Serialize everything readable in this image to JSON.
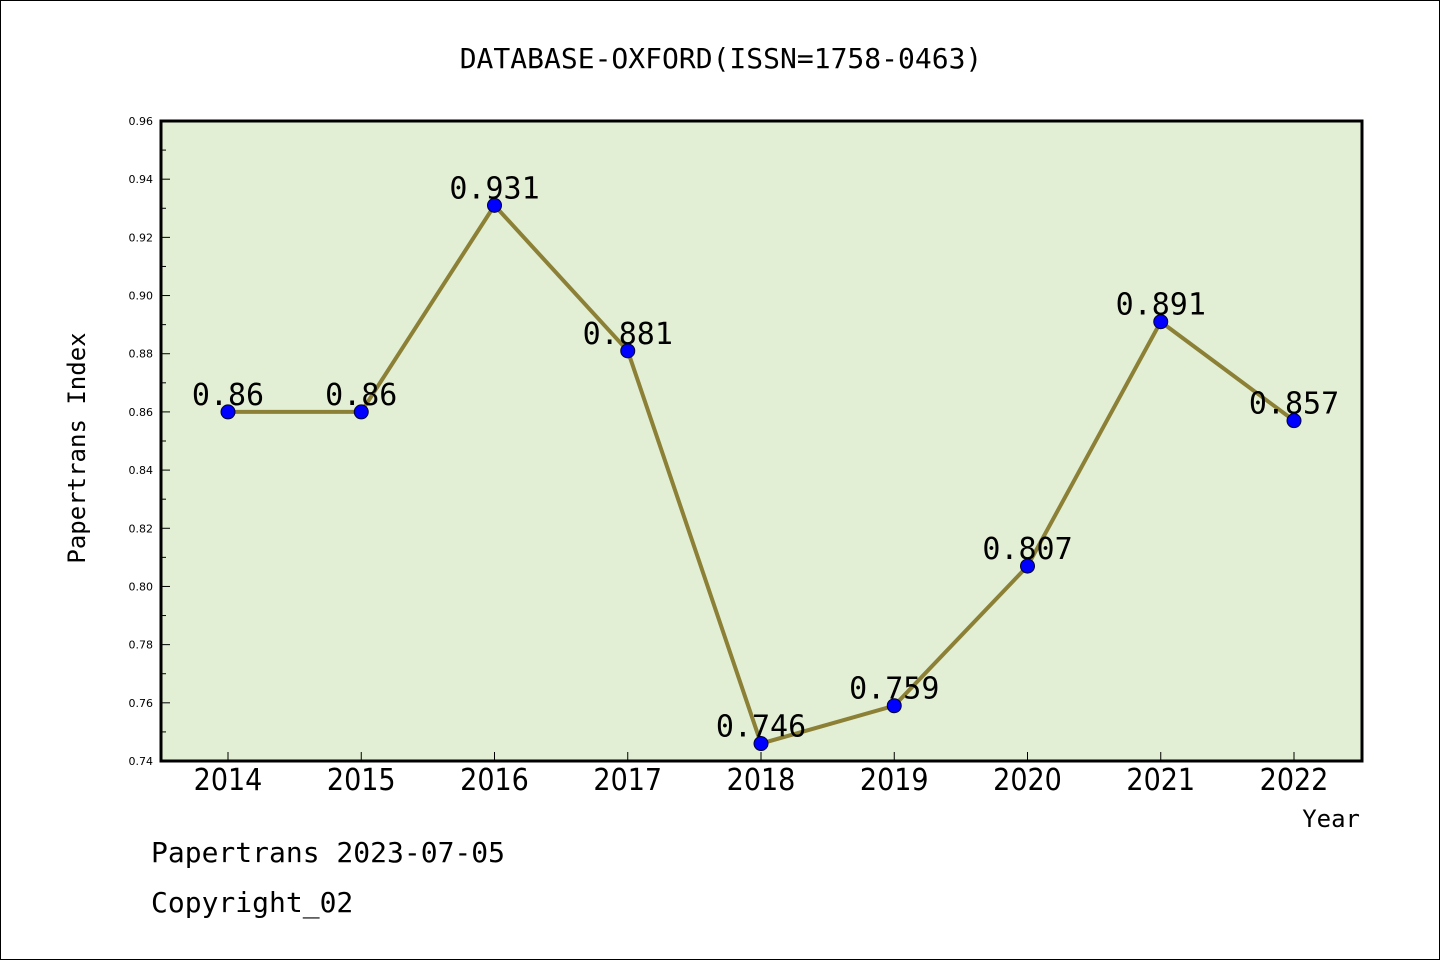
{
  "chart_data": {
    "type": "line",
    "title": "DATABASE-OXFORD(ISSN=1758-0463)",
    "xlabel": "Year",
    "ylabel": "Papertrans Index",
    "categories": [
      "2014",
      "2015",
      "2016",
      "2017",
      "2018",
      "2019",
      "2020",
      "2021",
      "2022"
    ],
    "series": [
      {
        "values": [
          0.86,
          0.86,
          0.931,
          0.881,
          0.746,
          0.759,
          0.807,
          0.891,
          0.857
        ],
        "labels": [
          "0.86",
          "0.86",
          "0.931",
          "0.881",
          "0.746",
          "0.759",
          "0.807",
          "0.891",
          "0.857"
        ]
      }
    ],
    "ylim": [
      0.74,
      0.96
    ],
    "yticks": [
      "0.74",
      "0.76",
      "0.78",
      "0.80",
      "0.82",
      "0.84",
      "0.86",
      "0.88",
      "0.90",
      "0.92",
      "0.94",
      "0.96"
    ],
    "grid": false,
    "colors": {
      "plot_background": "#e2efd4",
      "line": "#8b8036",
      "marker": "#0000ff"
    }
  },
  "footer": {
    "line1": "Papertrans 2023-07-05",
    "line2": "Copyright_02"
  }
}
